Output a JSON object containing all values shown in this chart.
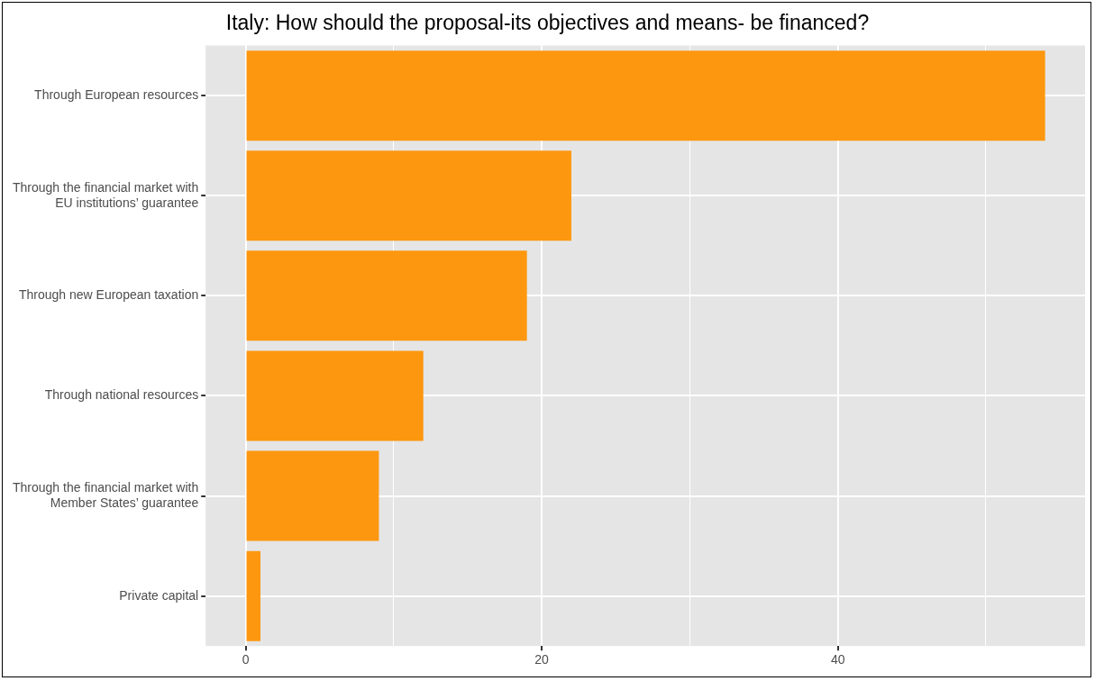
{
  "chart_data": {
    "type": "bar",
    "orientation": "horizontal",
    "title": "Italy: How should the proposal-its objectives and means- be financed?",
    "categories": [
      "Through European resources",
      "Through the financial market with\nEU institutions’ guarantee",
      "Through new European taxation",
      "Through national resources",
      "Through the financial market with\nMember States’ guarantee",
      "Private capital"
    ],
    "values": [
      54,
      22,
      19,
      12,
      9,
      1
    ],
    "color": "#fd970f",
    "xlim": [
      -2.7,
      56.7
    ],
    "xticks": [
      0,
      {
        "value": 10,
        "label": null
      },
      20,
      {
        "value": 30,
        "label": null
      },
      40,
      {
        "value": 50,
        "label": null
      }
    ],
    "grid": true,
    "legend": false
  }
}
